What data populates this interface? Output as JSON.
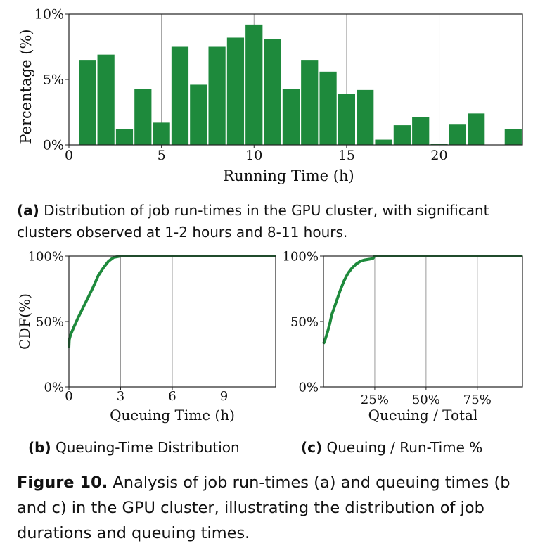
{
  "chart_data": [
    {
      "type": "bar",
      "xlabel": "Running Time (h)",
      "ylabel": "Percentage (%)",
      "xlim": [
        0,
        24.5
      ],
      "ylim": [
        0,
        10
      ],
      "xticks": [
        0,
        5,
        10,
        15,
        20
      ],
      "yticks": [
        {
          "v": 0,
          "label": "0%"
        },
        {
          "v": 5,
          "label": "5%"
        },
        {
          "v": 10,
          "label": "10%"
        }
      ],
      "vgrid": [
        5,
        10,
        15,
        20
      ],
      "color": "#1e8a3c",
      "x": [
        1,
        2,
        3,
        4,
        5,
        6,
        7,
        8,
        9,
        10,
        11,
        12,
        13,
        14,
        15,
        16,
        17,
        18,
        19,
        20,
        21,
        22,
        23,
        24
      ],
      "values": [
        6.5,
        6.9,
        1.2,
        4.3,
        1.7,
        7.5,
        4.6,
        7.5,
        8.2,
        9.2,
        8.1,
        4.3,
        6.5,
        5.6,
        3.9,
        4.2,
        0.4,
        1.5,
        2.1,
        0.1,
        1.6,
        2.4,
        0.0,
        1.2
      ]
    },
    {
      "type": "line",
      "xlabel": "Queuing Time (h)",
      "ylabel": "CDF(%)",
      "xlim": [
        0,
        12
      ],
      "ylim": [
        0,
        100
      ],
      "xticks": [
        {
          "v": 0,
          "label": "0"
        },
        {
          "v": 3,
          "label": "3"
        },
        {
          "v": 6,
          "label": "6"
        },
        {
          "v": 9,
          "label": "9"
        }
      ],
      "yticks": [
        {
          "v": 0,
          "label": "0%"
        },
        {
          "v": 50,
          "label": "50%"
        },
        {
          "v": 100,
          "label": "100%"
        }
      ],
      "vgrid": [
        3,
        6,
        9
      ],
      "color": "#1e8a3c",
      "x": [
        0,
        0.02,
        0.1,
        0.3,
        0.5,
        0.8,
        1.1,
        1.4,
        1.7,
        2.0,
        2.3,
        2.6,
        3.0,
        4,
        6,
        9,
        12
      ],
      "y": [
        30,
        36,
        40,
        46,
        52,
        60,
        68,
        76,
        85,
        91,
        96,
        99,
        100,
        100,
        100,
        100,
        100
      ]
    },
    {
      "type": "line",
      "xlabel": "Queuing / Total",
      "ylabel": "",
      "xlim": [
        0,
        97
      ],
      "ylim": [
        0,
        100
      ],
      "xticks": [
        {
          "v": 25,
          "label": "25%"
        },
        {
          "v": 50,
          "label": "50%"
        },
        {
          "v": 75,
          "label": "75%"
        }
      ],
      "yticks": [
        {
          "v": 0,
          "label": "0%"
        },
        {
          "v": 50,
          "label": "50%"
        },
        {
          "v": 100,
          "label": "100%"
        }
      ],
      "vgrid": [
        25,
        50,
        75
      ],
      "color": "#1e8a3c",
      "x": [
        0,
        1,
        2,
        3,
        4,
        6,
        8,
        10,
        12,
        14,
        16,
        18,
        20,
        22,
        24,
        25,
        30,
        50,
        75,
        97
      ],
      "y": [
        33,
        37,
        42,
        48,
        55,
        64,
        73,
        81,
        87,
        91,
        94,
        96,
        97,
        97.5,
        98,
        100,
        100,
        100,
        100,
        100
      ]
    }
  ],
  "captions": {
    "a_label": "(a)",
    "a_text": " Distribution of job run-times in the GPU cluster, with significant clusters observed at 1-2 hours and 8-11 hours.",
    "b_label": "(b)",
    "b_text": " Queuing-Time Distribution",
    "c_label": "(c)",
    "c_text": " Queuing / Run-Time %",
    "figure_label": "Figure 10.",
    "figure_text": " Analysis of job run-times (a) and queuing times (b and c) in the GPU cluster, illustrating the distribution of job durations and queuing times."
  }
}
